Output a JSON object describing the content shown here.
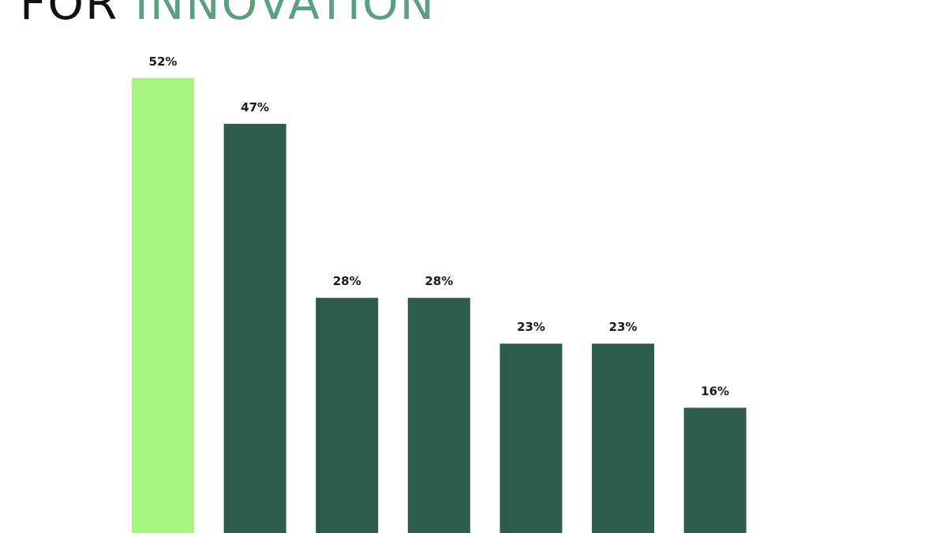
{
  "chart_data": {
    "type": "bar",
    "title": "FOR",
    "title_highlight": "INNOVATION",
    "title_color": "#111111",
    "title_highlight_color": "#5c9f80",
    "categories": [
      null,
      null,
      null,
      null,
      null,
      null,
      null
    ],
    "values": [
      52,
      47,
      28,
      28,
      23,
      23,
      16
    ],
    "value_labels": [
      "52%",
      "47%",
      "28%",
      "28%",
      "23%",
      "23%",
      "16%"
    ],
    "colors": [
      "#a6f57f",
      "#2e5c4b",
      "#2e5c4b",
      "#2e5c4b",
      "#2e5c4b",
      "#2e5c4b",
      "#2e5c4b"
    ]
  }
}
